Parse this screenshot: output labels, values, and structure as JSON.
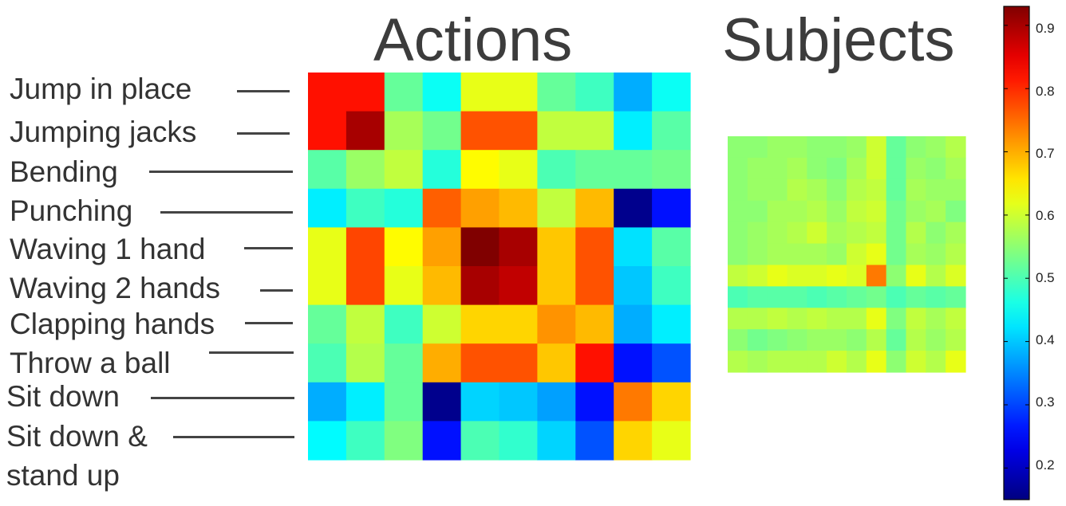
{
  "titles": {
    "actions": "Actions",
    "subjects": "Subjects"
  },
  "row_labels": [
    "Jump in place",
    "Jumping jacks",
    "Bending",
    "Punching",
    "Waving 1 hand",
    "Waving 2 hands",
    "Clapping hands",
    "Throw a ball",
    "Sit down",
    "Sit down &",
    "stand up"
  ],
  "colorbar": {
    "colormap": "jet",
    "range": [
      0.15,
      0.93
    ],
    "ticks": [
      "0.9",
      "0.8",
      "0.7",
      "0.6",
      "0.5",
      "0.4",
      "0.3",
      "0.2"
    ]
  },
  "chart_data": [
    {
      "type": "heatmap",
      "title": "Actions",
      "rows": [
        "Jump in place",
        "Jumping jacks",
        "Bending",
        "Punching",
        "Waving 1 hand",
        "Waving 2 hands",
        "Clapping hands",
        "Throw a ball",
        "Sit down",
        "Sit down & stand up"
      ],
      "values": [
        [
          0.82,
          0.82,
          0.52,
          0.45,
          0.62,
          0.62,
          0.52,
          0.49,
          0.38,
          0.45
        ],
        [
          0.82,
          0.9,
          0.57,
          0.53,
          0.77,
          0.77,
          0.59,
          0.59,
          0.43,
          0.51
        ],
        [
          0.51,
          0.56,
          0.59,
          0.47,
          0.64,
          0.62,
          0.5,
          0.52,
          0.52,
          0.53
        ],
        [
          0.43,
          0.49,
          0.47,
          0.76,
          0.71,
          0.69,
          0.59,
          0.69,
          0.16,
          0.26
        ],
        [
          0.62,
          0.78,
          0.64,
          0.71,
          0.93,
          0.9,
          0.68,
          0.77,
          0.42,
          0.51
        ],
        [
          0.62,
          0.78,
          0.62,
          0.69,
          0.9,
          0.88,
          0.68,
          0.77,
          0.4,
          0.49
        ],
        [
          0.52,
          0.59,
          0.49,
          0.6,
          0.67,
          0.67,
          0.72,
          0.69,
          0.38,
          0.43
        ],
        [
          0.5,
          0.58,
          0.52,
          0.7,
          0.77,
          0.77,
          0.68,
          0.82,
          0.26,
          0.31
        ],
        [
          0.38,
          0.43,
          0.52,
          0.16,
          0.41,
          0.4,
          0.37,
          0.26,
          0.74,
          0.67
        ],
        [
          0.44,
          0.49,
          0.54,
          0.26,
          0.5,
          0.48,
          0.41,
          0.31,
          0.67,
          0.62
        ]
      ]
    },
    {
      "type": "heatmap",
      "title": "Subjects",
      "values": [
        [
          0.55,
          0.55,
          0.56,
          0.56,
          0.55,
          0.55,
          0.56,
          0.6,
          0.52,
          0.55,
          0.56,
          0.58
        ],
        [
          0.55,
          0.56,
          0.56,
          0.57,
          0.55,
          0.54,
          0.57,
          0.6,
          0.52,
          0.56,
          0.55,
          0.57
        ],
        [
          0.55,
          0.56,
          0.56,
          0.58,
          0.57,
          0.55,
          0.58,
          0.59,
          0.52,
          0.57,
          0.56,
          0.56
        ],
        [
          0.55,
          0.55,
          0.57,
          0.57,
          0.58,
          0.56,
          0.59,
          0.6,
          0.53,
          0.56,
          0.57,
          0.54
        ],
        [
          0.55,
          0.56,
          0.57,
          0.58,
          0.6,
          0.57,
          0.58,
          0.59,
          0.53,
          0.58,
          0.55,
          0.57
        ],
        [
          0.55,
          0.56,
          0.57,
          0.57,
          0.57,
          0.56,
          0.6,
          0.62,
          0.53,
          0.57,
          0.56,
          0.58
        ],
        [
          0.59,
          0.6,
          0.62,
          0.61,
          0.61,
          0.62,
          0.61,
          0.74,
          0.55,
          0.62,
          0.58,
          0.61
        ],
        [
          0.5,
          0.51,
          0.51,
          0.51,
          0.5,
          0.51,
          0.52,
          0.53,
          0.5,
          0.52,
          0.51,
          0.52
        ],
        [
          0.58,
          0.58,
          0.59,
          0.58,
          0.59,
          0.58,
          0.58,
          0.62,
          0.54,
          0.59,
          0.57,
          0.59
        ],
        [
          0.55,
          0.53,
          0.54,
          0.55,
          0.56,
          0.56,
          0.55,
          0.58,
          0.52,
          0.58,
          0.56,
          0.58
        ],
        [
          0.58,
          0.57,
          0.58,
          0.58,
          0.58,
          0.6,
          0.58,
          0.62,
          0.55,
          0.6,
          0.58,
          0.62
        ]
      ]
    }
  ]
}
